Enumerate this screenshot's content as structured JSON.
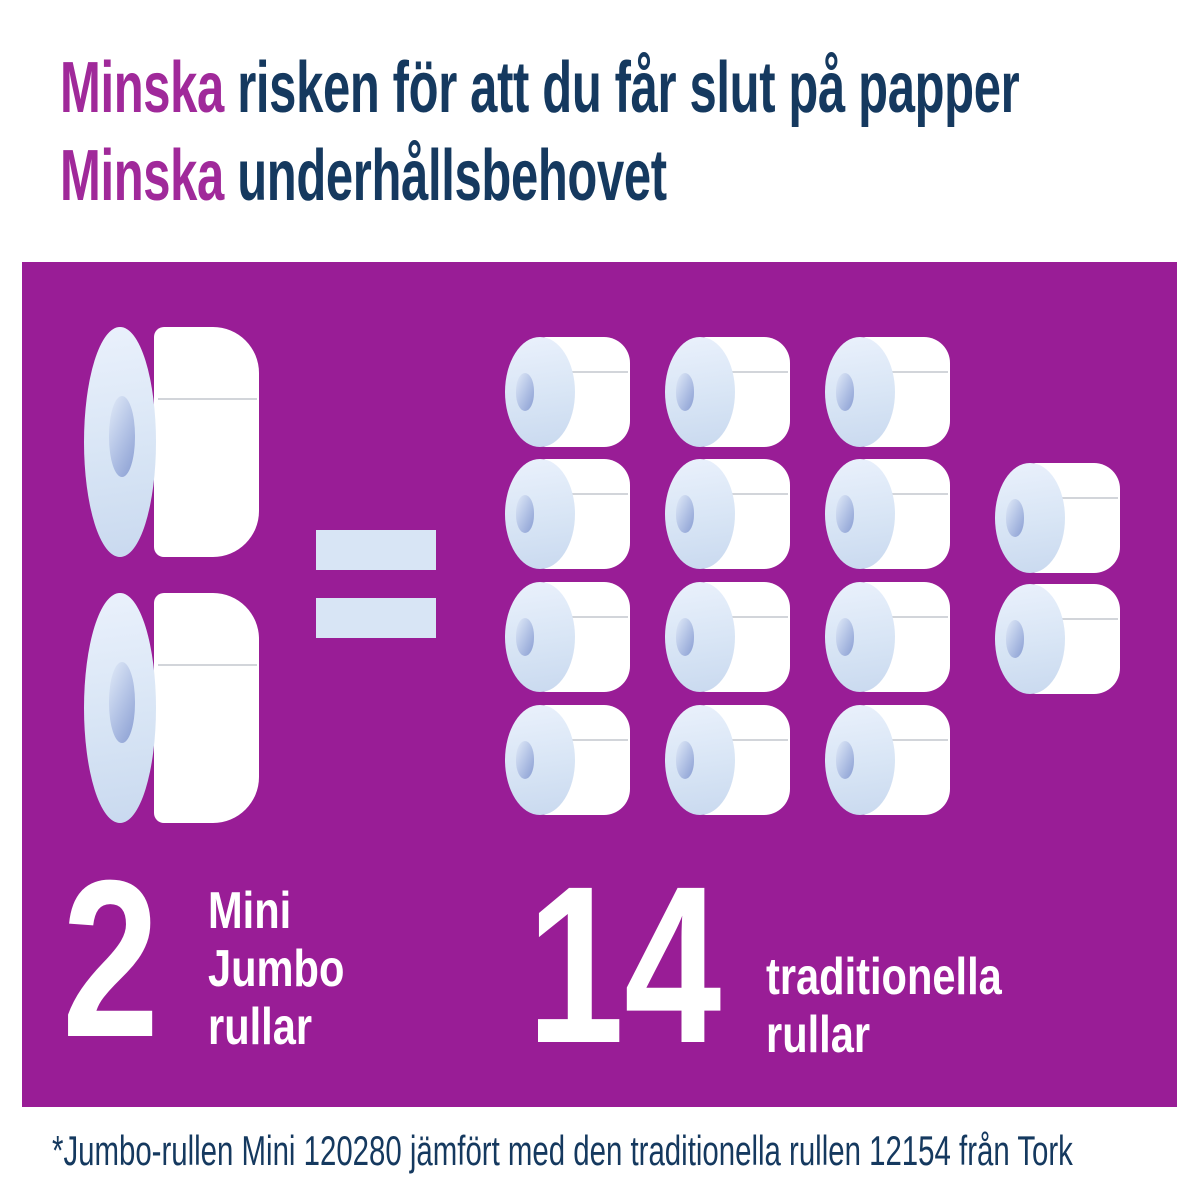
{
  "title": {
    "line1": {
      "highlight": "Minska",
      "rest": " risken för att du får slut på papper"
    },
    "line2": {
      "highlight": "Minska",
      "rest": " underhållsbehovet"
    }
  },
  "comparison": {
    "left": {
      "count": "2",
      "roll_count": 2,
      "label_lines": [
        "Mini",
        "Jumbo",
        "rullar"
      ]
    },
    "right": {
      "count": "14",
      "roll_count": 14,
      "label_lines": [
        "traditionella",
        "rullar"
      ]
    },
    "equals_symbol": "="
  },
  "footnote": "*Jumbo-rullen Mini 120280 jämfört med den traditionella rullen 12154 från Tork",
  "colors": {
    "panel_purple": "#991d96",
    "title_magenta": "#a0299a",
    "title_navy": "#15395f",
    "equals_blue": "#d8e5f5",
    "roll_hole_blue": "#8da1d4",
    "text_white": "#ffffff"
  }
}
